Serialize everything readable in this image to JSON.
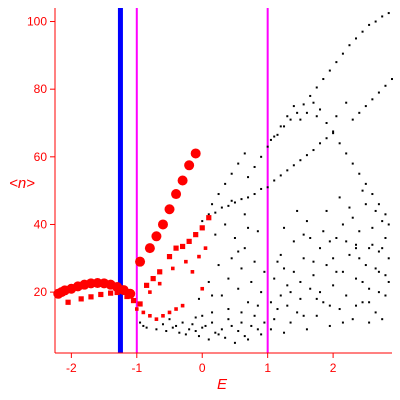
{
  "chart_data": {
    "type": "scatter",
    "title": "",
    "xlabel": "E",
    "ylabel": "<n>",
    "xlim": [
      -2.25,
      2.9
    ],
    "ylim": [
      2,
      104
    ],
    "xticks": [
      -2,
      -1,
      0,
      1,
      2
    ],
    "yticks": [
      20,
      40,
      60,
      80,
      100
    ],
    "grid": false,
    "colors": {
      "axes": "#ff0000",
      "black_points": "#000000",
      "red_points": "#ff0000",
      "blue_line": "#0000ff",
      "magenta_line": "#ff00ff"
    },
    "vertical_lines": [
      {
        "x": -1.25,
        "color": "#0000ff"
      },
      {
        "x": -1.0,
        "color": "#ff00ff"
      },
      {
        "x": 1.0,
        "color": "#ff00ff"
      }
    ],
    "red_series": [
      {
        "name": "",
        "marker": "circle",
        "size_scale": "large",
        "points": [
          [
            -2.2,
            19.5
          ],
          [
            -2.15,
            20
          ],
          [
            -2.1,
            20.5
          ],
          [
            -2.0,
            21
          ],
          [
            -1.9,
            21.7
          ],
          [
            -1.8,
            22.2
          ],
          [
            -1.7,
            22.6
          ],
          [
            -1.6,
            22.7
          ],
          [
            -1.5,
            22.6
          ],
          [
            -1.4,
            22.2
          ],
          [
            -1.3,
            21.5
          ],
          [
            -1.2,
            20.6
          ],
          [
            -1.1,
            19.5
          ],
          [
            -0.95,
            29
          ],
          [
            -0.8,
            33
          ],
          [
            -0.7,
            36.5
          ],
          [
            -0.6,
            40
          ],
          [
            -0.5,
            44.5
          ],
          [
            -0.4,
            49
          ],
          [
            -0.3,
            53
          ],
          [
            -0.2,
            57.5
          ],
          [
            -0.1,
            61
          ]
        ]
      },
      {
        "name": "",
        "marker": "square",
        "size_scale": "medium",
        "points": [
          [
            -2.05,
            17
          ],
          [
            -1.85,
            18
          ],
          [
            -1.7,
            18.6
          ],
          [
            -1.55,
            19.3
          ],
          [
            -1.4,
            19.7
          ],
          [
            -1.3,
            19.9
          ],
          [
            -1.15,
            18.7
          ],
          [
            -1.05,
            17.5
          ],
          [
            -0.95,
            16.5
          ],
          [
            -0.85,
            22
          ],
          [
            -0.75,
            24
          ],
          [
            -0.65,
            26
          ],
          [
            -0.5,
            30.5
          ],
          [
            -0.4,
            33
          ],
          [
            -0.3,
            33.5
          ],
          [
            -0.2,
            35
          ],
          [
            -0.1,
            37
          ],
          [
            0.0,
            39
          ],
          [
            0.1,
            42
          ]
        ]
      },
      {
        "name": "",
        "marker": "square",
        "size_scale": "small",
        "points": [
          [
            -1.0,
            15
          ],
          [
            -0.9,
            14
          ],
          [
            -0.8,
            13
          ],
          [
            -0.7,
            12
          ],
          [
            -0.6,
            13
          ],
          [
            -0.5,
            14
          ],
          [
            -0.4,
            15
          ],
          [
            -0.3,
            16
          ],
          [
            -0.8,
            20
          ],
          [
            -0.65,
            22.5
          ],
          [
            -0.45,
            27
          ],
          [
            -0.25,
            29
          ],
          [
            -0.05,
            30.5
          ],
          [
            0.05,
            33
          ],
          [
            -0.15,
            26
          ],
          [
            0.0,
            21
          ]
        ]
      }
    ],
    "black_points": [
      [
        -0.95,
        11
      ],
      [
        -0.9,
        10
      ],
      [
        -0.85,
        9.5
      ],
      [
        -0.7,
        9
      ],
      [
        -0.6,
        10.5
      ],
      [
        -0.55,
        8.5
      ],
      [
        -0.45,
        9.5
      ],
      [
        -0.4,
        10
      ],
      [
        -0.35,
        8
      ],
      [
        -0.3,
        11
      ],
      [
        -0.25,
        7.5
      ],
      [
        -0.2,
        9
      ],
      [
        -0.15,
        10.5
      ],
      [
        -0.1,
        8.5
      ],
      [
        -0.05,
        7
      ],
      [
        0.0,
        9.5
      ],
      [
        0.05,
        10
      ],
      [
        0.1,
        6
      ],
      [
        0.15,
        11
      ],
      [
        0.2,
        8
      ],
      [
        0.25,
        7.5
      ],
      [
        0.3,
        9
      ],
      [
        0.35,
        6.5
      ],
      [
        0.4,
        12
      ],
      [
        0.45,
        10
      ],
      [
        0.5,
        5
      ],
      [
        0.55,
        8.5
      ],
      [
        0.6,
        11
      ],
      [
        0.65,
        7
      ],
      [
        0.7,
        6
      ],
      [
        0.75,
        10
      ],
      [
        0.8,
        13
      ],
      [
        0.85,
        9
      ],
      [
        0.9,
        7.5
      ],
      [
        0.95,
        11
      ],
      [
        -0.5,
        12
      ],
      [
        -0.1,
        12.5
      ],
      [
        0.15,
        14
      ],
      [
        0.6,
        14
      ],
      [
        0.0,
        13
      ],
      [
        0.3,
        19
      ],
      [
        0.4,
        24
      ],
      [
        0.45,
        30
      ],
      [
        0.5,
        36
      ],
      [
        0.55,
        21
      ],
      [
        0.6,
        27
      ],
      [
        0.65,
        33
      ],
      [
        0.7,
        17
      ],
      [
        0.75,
        23
      ],
      [
        0.8,
        29
      ],
      [
        0.85,
        38
      ],
      [
        0.9,
        20
      ],
      [
        0.95,
        26
      ],
      [
        0.35,
        40
      ],
      [
        0.4,
        15
      ],
      [
        0.55,
        32
      ],
      [
        0.7,
        39
      ],
      [
        0.85,
        16
      ],
      [
        0.2,
        37
      ],
      [
        0.25,
        28
      ],
      [
        0.1,
        23
      ],
      [
        0.15,
        19
      ],
      [
        -0.05,
        18
      ],
      [
        0.65,
        43
      ],
      [
        0.45,
        47
      ],
      [
        1.05,
        9
      ],
      [
        1.1,
        12
      ],
      [
        1.15,
        15
      ],
      [
        1.2,
        19
      ],
      [
        1.25,
        8
      ],
      [
        1.3,
        22
      ],
      [
        1.35,
        11
      ],
      [
        1.4,
        26
      ],
      [
        1.45,
        14
      ],
      [
        1.5,
        18
      ],
      [
        1.55,
        30
      ],
      [
        1.6,
        9
      ],
      [
        1.65,
        21
      ],
      [
        1.7,
        25
      ],
      [
        1.75,
        13
      ],
      [
        1.8,
        33
      ],
      [
        1.85,
        17
      ],
      [
        1.9,
        28
      ],
      [
        1.95,
        10
      ],
      [
        2.0,
        22
      ],
      [
        2.05,
        36
      ],
      [
        2.1,
        15
      ],
      [
        2.15,
        26
      ],
      [
        2.2,
        19
      ],
      [
        2.25,
        31
      ],
      [
        2.3,
        12
      ],
      [
        2.35,
        24
      ],
      [
        2.4,
        38
      ],
      [
        2.45,
        17
      ],
      [
        2.5,
        28
      ],
      [
        2.55,
        21
      ],
      [
        2.6,
        34
      ],
      [
        2.65,
        14
      ],
      [
        2.7,
        26
      ],
      [
        2.75,
        41
      ],
      [
        2.8,
        19
      ],
      [
        2.85,
        30
      ],
      [
        1.1,
        24
      ],
      [
        1.2,
        31
      ],
      [
        1.3,
        16
      ],
      [
        1.4,
        35
      ],
      [
        1.5,
        23
      ],
      [
        1.6,
        41
      ],
      [
        1.7,
        29
      ],
      [
        1.8,
        20
      ],
      [
        1.9,
        44
      ],
      [
        2.0,
        30
      ],
      [
        2.1,
        48
      ],
      [
        2.2,
        35
      ],
      [
        2.3,
        42
      ],
      [
        2.4,
        30
      ],
      [
        2.5,
        46
      ],
      [
        2.6,
        39
      ],
      [
        2.7,
        32
      ],
      [
        2.8,
        36
      ],
      [
        1.25,
        39
      ],
      [
        1.45,
        44
      ],
      [
        1.65,
        36
      ],
      [
        1.85,
        38
      ],
      [
        2.05,
        26
      ],
      [
        2.25,
        45
      ],
      [
        2.45,
        50
      ],
      [
        2.65,
        44
      ],
      [
        2.85,
        40
      ],
      [
        1.15,
        29
      ],
      [
        1.35,
        20
      ],
      [
        1.55,
        13
      ],
      [
        1.75,
        18
      ],
      [
        1.95,
        16
      ],
      [
        2.15,
        11
      ],
      [
        2.35,
        16
      ],
      [
        2.55,
        11
      ],
      [
        2.75,
        12
      ],
      [
        1.05,
        17
      ],
      [
        1.25,
        27
      ],
      [
        1.55,
        37
      ],
      [
        1.95,
        35
      ],
      [
        2.15,
        40
      ],
      [
        2.35,
        33
      ],
      [
        2.55,
        33
      ],
      [
        2.7,
        20
      ],
      [
        2.8,
        25
      ],
      [
        0.15,
        46
      ],
      [
        0.25,
        49
      ],
      [
        0.35,
        52
      ],
      [
        0.45,
        55
      ],
      [
        0.55,
        58
      ],
      [
        0.65,
        61
      ],
      [
        0.7,
        54
      ],
      [
        0.8,
        57
      ],
      [
        0.9,
        60
      ],
      [
        1.0,
        63
      ],
      [
        1.1,
        66
      ],
      [
        1.2,
        69
      ],
      [
        1.3,
        72
      ],
      [
        1.4,
        75
      ],
      [
        1.5,
        71
      ],
      [
        1.6,
        73
      ],
      [
        1.7,
        76
      ],
      [
        1.8,
        74
      ],
      [
        1.9,
        70
      ],
      [
        2.0,
        67
      ],
      [
        2.1,
        64
      ],
      [
        2.2,
        61
      ],
      [
        2.3,
        58
      ],
      [
        2.4,
        55
      ],
      [
        2.5,
        52
      ],
      [
        2.6,
        49
      ],
      [
        2.7,
        46
      ],
      [
        2.8,
        43
      ],
      [
        2.05,
        72
      ],
      [
        2.2,
        76
      ],
      [
        1.75,
        72
      ],
      [
        0.0,
        41
      ],
      [
        0.1,
        43
      ],
      [
        0.2,
        43.5
      ],
      [
        0.3,
        45
      ],
      [
        0.4,
        45.5
      ],
      [
        0.5,
        46.5
      ],
      [
        0.6,
        47.5
      ],
      [
        0.7,
        48
      ],
      [
        0.8,
        49
      ],
      [
        0.9,
        50.5
      ],
      [
        1.0,
        51
      ],
      [
        1.1,
        53
      ],
      [
        1.2,
        54.5
      ],
      [
        1.3,
        56
      ],
      [
        1.4,
        57.5
      ],
      [
        1.5,
        59
      ],
      [
        1.6,
        60.5
      ],
      [
        1.7,
        62
      ],
      [
        1.8,
        64
      ],
      [
        1.9,
        65.5
      ],
      [
        2.0,
        67.5
      ],
      [
        2.3,
        71
      ],
      [
        2.4,
        73
      ],
      [
        2.5,
        75
      ],
      [
        2.6,
        77
      ],
      [
        2.7,
        79
      ],
      [
        2.8,
        81
      ],
      [
        2.9,
        83
      ],
      [
        1.05,
        65
      ],
      [
        1.15,
        66.5
      ],
      [
        1.25,
        69
      ],
      [
        1.35,
        71
      ],
      [
        1.45,
        73
      ],
      [
        1.55,
        75.5
      ],
      [
        1.65,
        78
      ],
      [
        1.75,
        80.5
      ],
      [
        1.85,
        83
      ],
      [
        1.95,
        85.5
      ],
      [
        2.05,
        88
      ],
      [
        2.15,
        90.5
      ],
      [
        2.25,
        93
      ],
      [
        2.35,
        95
      ],
      [
        2.45,
        97
      ],
      [
        2.55,
        99
      ],
      [
        2.65,
        100
      ],
      [
        2.75,
        101.5
      ],
      [
        2.85,
        102.5
      ],
      [
        2.35,
        34
      ],
      [
        2.45,
        23
      ],
      [
        2.55,
        17
      ],
      [
        2.65,
        27
      ],
      [
        2.75,
        33
      ],
      [
        2.85,
        23
      ]
    ]
  }
}
